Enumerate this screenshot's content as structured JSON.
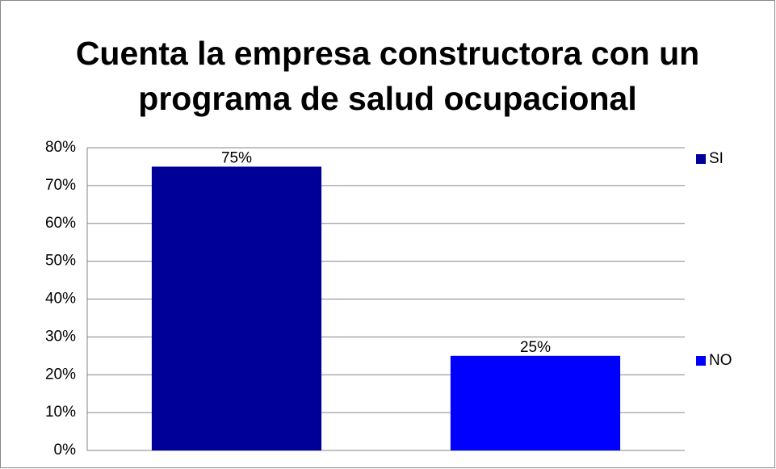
{
  "chart_data": {
    "type": "bar",
    "title": "Cuenta la empresa constructora con un programa de salud ocupacional",
    "categories": [
      null
    ],
    "series": [
      {
        "name": "SI",
        "color": "#000099",
        "values": [
          75
        ],
        "value_labels": [
          "75%"
        ]
      },
      {
        "name": "NO",
        "color": "#0000ff",
        "values": [
          25
        ],
        "value_labels": [
          "25%"
        ]
      }
    ],
    "ylim": [
      0,
      80
    ],
    "yticks": [
      {
        "value": 0,
        "label": "0%"
      },
      {
        "value": 10,
        "label": "10%"
      },
      {
        "value": 20,
        "label": "20%"
      },
      {
        "value": 30,
        "label": "30%"
      },
      {
        "value": 40,
        "label": "40%"
      },
      {
        "value": 50,
        "label": "50%"
      },
      {
        "value": 60,
        "label": "60%"
      },
      {
        "value": 70,
        "label": "70%"
      },
      {
        "value": 80,
        "label": "80%"
      }
    ],
    "grid": true,
    "legend": "right"
  }
}
